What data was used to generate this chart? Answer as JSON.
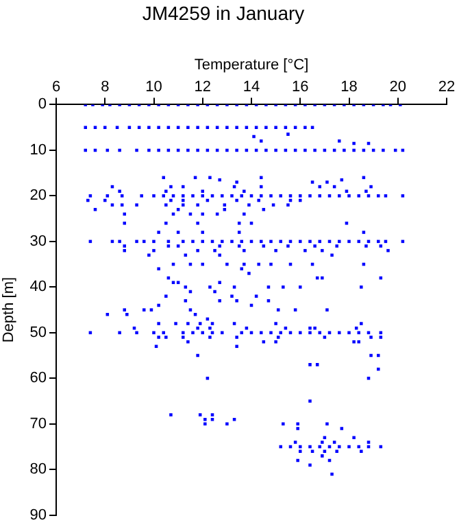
{
  "chart_data": {
    "type": "scatter",
    "title": "JM4259 in January",
    "xlabel": "Temperature [°C]",
    "ylabel": "Depth [m]",
    "xlim": [
      6,
      22
    ],
    "xticks": [
      6,
      8,
      10,
      12,
      14,
      16,
      18,
      20,
      22
    ],
    "ylim": [
      90,
      0
    ],
    "yticks": [
      0,
      10,
      20,
      30,
      40,
      50,
      60,
      70,
      80,
      90
    ],
    "grid": false,
    "legend": false,
    "marker": "square",
    "series": [
      {
        "color": "#0000ff",
        "x": [
          7.2,
          7.5,
          7.9,
          8.2,
          8.6,
          9,
          9.4,
          9.8,
          10.2,
          10.6,
          11,
          11.4,
          11.8,
          12.2,
          12.6,
          13,
          13.4,
          13.8,
          14.2,
          14.6,
          15,
          15.4,
          15.8,
          16.2,
          16.6,
          17,
          17.4,
          17.8,
          18.2,
          18.6,
          19,
          19.4,
          19.7,
          20.1
        ],
        "values": [
          0,
          0,
          0,
          0,
          0,
          0,
          0,
          0,
          0,
          0,
          0,
          0,
          0,
          0,
          0,
          0,
          0,
          0,
          0,
          0,
          0,
          0,
          0,
          0,
          0,
          0,
          0,
          0,
          0,
          0,
          0,
          0,
          0,
          0
        ]
      },
      {
        "color": "#0000ff",
        "x": [
          7.2,
          7.6,
          8,
          8.5,
          9,
          9.4,
          9.8,
          10.2,
          10.6,
          11,
          11.4,
          11.8,
          12.2,
          12.6,
          13,
          13.4,
          13.8,
          14.2,
          14.6,
          15,
          15.4,
          15.8,
          16.2,
          16.5
        ],
        "values": [
          5,
          5,
          5,
          5,
          5,
          5,
          5,
          5,
          5,
          5,
          5,
          5,
          5,
          5,
          5,
          5,
          5,
          5,
          5,
          5,
          5,
          5,
          5,
          5
        ]
      },
      {
        "color": "#0000ff",
        "x": [
          7.2,
          7.6,
          8.1,
          8.6,
          9.3,
          9.8,
          10.2,
          10.6,
          11,
          11.4,
          11.8,
          12.2,
          12.6,
          13,
          13.4,
          13.8,
          14.2,
          14.6,
          15,
          15.4,
          15.8,
          16.2,
          16.6,
          17,
          17.4,
          17.8,
          18.2,
          18.6,
          19,
          19.4,
          19.9,
          20.2
        ],
        "values": [
          10,
          10,
          10,
          10,
          10,
          10,
          10,
          10,
          10,
          10,
          10,
          10,
          10,
          10,
          10,
          10,
          10,
          10,
          10,
          10,
          10,
          10,
          10,
          10,
          10,
          10,
          10,
          10,
          10,
          10,
          10,
          10
        ]
      },
      {
        "color": "#0000ff",
        "x": [
          7.4,
          8.1,
          8.7,
          9.5,
          10,
          10.4,
          10.8,
          11.2,
          11.6,
          12,
          12.4,
          12.8,
          13.2,
          13.6,
          14,
          14.4,
          14.8,
          15.2,
          15.6,
          16,
          16.4,
          16.8,
          17.2,
          17.6,
          18,
          18.4,
          18.8,
          19.2,
          19.5,
          20.2
        ],
        "values": [
          20,
          20,
          20,
          20,
          20,
          20,
          20,
          20,
          20,
          20,
          20,
          20,
          20,
          20,
          20,
          20,
          20,
          20,
          20,
          20,
          20,
          20,
          20,
          20,
          20,
          20,
          20,
          20,
          20,
          20
        ]
      },
      {
        "color": "#0000ff",
        "x": [
          7.4,
          8.3,
          8.6,
          9.3,
          9.6,
          10,
          10.6,
          11.2,
          11.6,
          12,
          12.4,
          12.8,
          13.2,
          13.6,
          14,
          14.4,
          14.8,
          15.2,
          15.6,
          16,
          16.4,
          16.8,
          17.2,
          17.6,
          18,
          18.4,
          18.8,
          19.2,
          19.5,
          20.2
        ],
        "values": [
          30,
          30,
          30,
          30,
          30,
          30,
          30,
          30,
          30,
          30,
          30,
          30,
          30,
          30,
          30,
          30,
          30,
          30,
          30,
          30,
          30,
          30,
          30,
          30,
          30,
          30,
          30,
          30,
          30,
          30
        ]
      },
      {
        "color": "#0000ff",
        "x": [
          7.4,
          8.6,
          9.3,
          10,
          10.4,
          11.2,
          11.6,
          12,
          12.4,
          12.8,
          13.6,
          14,
          14.4,
          14.8,
          15.2,
          15.6,
          16,
          16.4,
          16.8,
          17.2,
          17.6,
          18,
          18.4,
          18.8,
          19.3
        ],
        "values": [
          50,
          50,
          50,
          50,
          50,
          50,
          50,
          50,
          50,
          50,
          50,
          50,
          50,
          50,
          50,
          50,
          50,
          50,
          50,
          50,
          50,
          50,
          50,
          50,
          50
        ]
      },
      {
        "color": "#0000ff",
        "x": [
          15.2,
          15.6,
          16,
          16.4,
          16.8,
          17.2,
          17.6,
          18,
          18.4,
          18.8,
          19.3
        ],
        "values": [
          75,
          75,
          75,
          75,
          75,
          75,
          75,
          75,
          75,
          75,
          75
        ]
      },
      {
        "color": "#0000ff",
        "x": [
          14.1,
          15.5,
          14.4,
          17.6,
          18.2,
          18.8,
          10.4,
          11.7,
          12.3,
          12.7,
          13.4,
          14.4,
          16.5,
          17.1,
          17.7,
          18.6
        ],
        "values": [
          7,
          6.5,
          8,
          8,
          8.5,
          8.5,
          16,
          16,
          16,
          16.5,
          17,
          16,
          17,
          17,
          16.5,
          16
        ]
      },
      {
        "color": "#0000ff",
        "x": [
          8.3,
          10.7,
          11.2,
          13.3,
          14.4,
          16.8,
          17.4,
          18.9,
          8.6,
          10.5,
          12,
          13.7,
          17.9,
          18.7
        ],
        "values": [
          18,
          18,
          18,
          18,
          18,
          18,
          18,
          18,
          19,
          19,
          19,
          19,
          19,
          19
        ]
      },
      {
        "color": "#0000ff",
        "x": [
          7.3,
          8,
          10.7,
          11.2,
          12.2,
          13.4,
          14.3,
          15.6,
          16,
          8.3,
          8.7,
          9.3,
          10.5,
          11.2,
          11.8,
          12.9,
          13.9,
          14.9,
          15.5
        ],
        "values": [
          21,
          21,
          21,
          21,
          21,
          21,
          21,
          21,
          21,
          22,
          22,
          22,
          22,
          22,
          22,
          22,
          22,
          22,
          22
        ]
      },
      {
        "color": "#0000ff",
        "x": [
          7.6,
          11,
          12.9,
          14.5,
          8.8,
          10.8,
          11.5,
          12,
          12.6,
          13.7
        ],
        "values": [
          23,
          23,
          23,
          23,
          24,
          24,
          24,
          24,
          24,
          24
        ]
      },
      {
        "color": "#0000ff",
        "x": [
          8.8,
          10.5,
          11.8,
          13.5,
          14,
          17.9,
          10.2,
          11,
          12,
          13.5,
          18.6
        ],
        "values": [
          26,
          26,
          26,
          26,
          26,
          26,
          28,
          28,
          28,
          28,
          28
        ]
      },
      {
        "color": "#0000ff",
        "x": [
          8.8,
          10.6,
          11,
          12.7,
          13.5,
          14.5,
          15.5,
          16.6,
          17.5,
          18.7,
          19.3
        ],
        "values": [
          31,
          31,
          31,
          31,
          31,
          31,
          31,
          31,
          31,
          31,
          31
        ]
      },
      {
        "color": "#0000ff",
        "x": [
          8.8,
          10,
          11.8,
          12.5,
          13.7,
          15,
          16.2,
          16.9,
          19.6,
          9.8,
          11.3,
          12.7,
          17.3
        ],
        "values": [
          32,
          32,
          32,
          32,
          32,
          32,
          32,
          32,
          32,
          33,
          33,
          33,
          33
        ]
      },
      {
        "color": "#0000ff",
        "x": [
          10.8,
          11.5,
          12,
          13,
          13.7,
          14.3,
          14.8,
          15.6,
          16.5,
          18.6,
          10.2,
          13.6,
          13.9
        ],
        "values": [
          35,
          35,
          35,
          35,
          35,
          35,
          35,
          35,
          35,
          35,
          36,
          36,
          37
        ]
      },
      {
        "color": "#0000ff",
        "x": [
          10.6,
          16.7,
          16.9,
          19.3,
          10.8,
          11,
          12.7,
          11.3,
          12.3,
          13.3,
          14.7,
          15.3,
          16,
          18.5,
          11.5,
          12.5
        ],
        "values": [
          38,
          38,
          38,
          38,
          39,
          39,
          39,
          40,
          40,
          40,
          40,
          40,
          40,
          40,
          41,
          41
        ]
      },
      {
        "color": "#0000ff",
        "x": [
          10.5,
          13.2,
          14.2,
          11.3,
          12.7,
          13.4,
          14.7,
          10.2,
          14
        ],
        "values": [
          42,
          42,
          42,
          43,
          43,
          43,
          43,
          44,
          44
        ]
      },
      {
        "color": "#0000ff",
        "x": [
          8.8,
          9.6,
          9.9,
          11.5,
          15.1,
          15.8,
          17.1,
          8.1,
          8.9,
          11.7,
          12.2
        ],
        "values": [
          45,
          45,
          45,
          45,
          45,
          45,
          45,
          46,
          46,
          46,
          47
        ]
      },
      {
        "color": "#0000ff",
        "x": [
          10.2,
          10.9,
          11.4,
          11.9,
          12.4,
          13.3,
          15,
          18.5,
          9.2,
          11.8,
          12.3,
          13.8,
          15.4,
          16.4,
          16.6,
          18.3
        ],
        "values": [
          48,
          48,
          48,
          48,
          48,
          48,
          48,
          48,
          49,
          49,
          49,
          49,
          49,
          49,
          49,
          49
        ]
      },
      {
        "color": "#0000ff",
        "x": [
          10.2,
          10.5,
          11.2,
          12.3,
          13.4,
          15.1,
          17,
          18.9,
          19.3,
          11.4,
          14.5,
          15,
          18.2,
          18.4,
          10.1,
          13.4
        ],
        "values": [
          51,
          51,
          51,
          51,
          51,
          51,
          51,
          51,
          51,
          52,
          52,
          52,
          52,
          52,
          53,
          53
        ]
      },
      {
        "color": "#0000ff",
        "x": [
          11.8,
          16.4,
          16.7,
          18.9,
          19.2,
          19.2,
          18.8,
          12.2,
          16.4,
          10.7,
          11.9,
          12.1,
          12.1,
          12.4,
          12.4,
          13,
          13.3,
          15.3,
          15.9,
          15.9,
          17.1,
          17.7,
          18.2,
          17,
          15.8,
          16.9,
          17.4,
          18.8,
          16,
          16.5,
          17,
          17.5,
          18.5,
          16.9,
          15.9,
          17.2,
          16.4,
          17.3
        ],
        "values": [
          55,
          57,
          57,
          55,
          55,
          58,
          60,
          60,
          65,
          68,
          68,
          69,
          70,
          68,
          69,
          70,
          69,
          70,
          70,
          71,
          70,
          71,
          73,
          73,
          74,
          74,
          74,
          74,
          76,
          76,
          76,
          76,
          76,
          77,
          78,
          78,
          79,
          81
        ]
      }
    ]
  }
}
